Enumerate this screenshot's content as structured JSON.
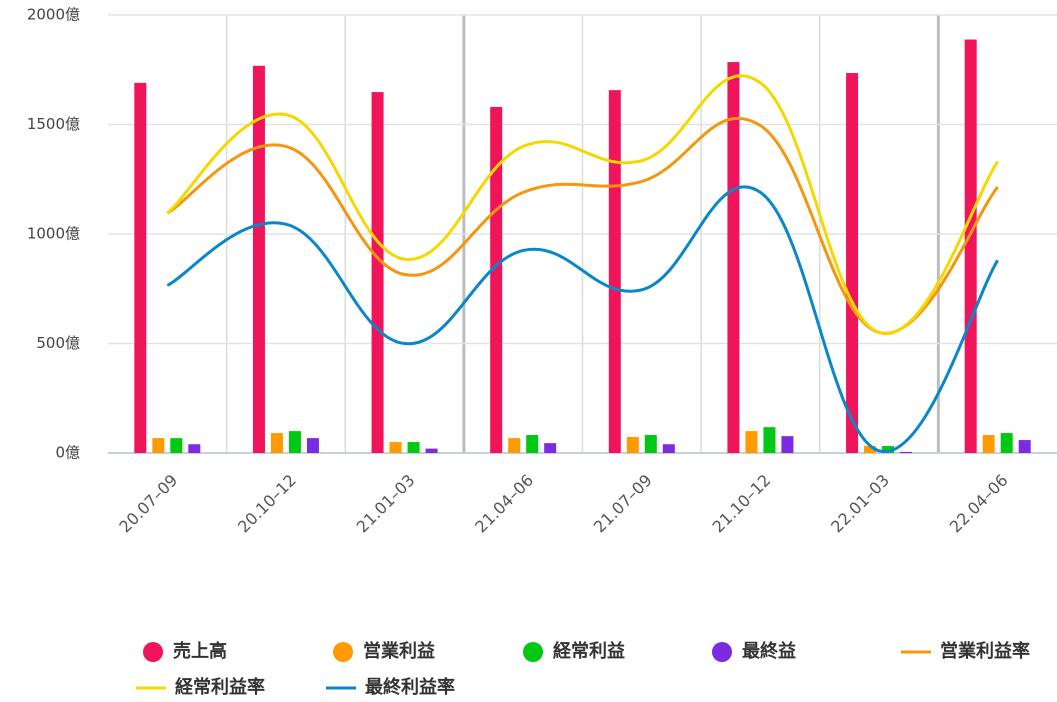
{
  "chart_data": {
    "type": "bar",
    "categories": [
      "20.07–09",
      "20.10–12",
      "21.01–03",
      "21.04–06",
      "21.07–09",
      "21.10–12",
      "22.01–03",
      "22.04–06"
    ],
    "ylim": [
      0,
      2000
    ],
    "yticks": [
      {
        "value": 0,
        "label": "0億"
      },
      {
        "value": 500,
        "label": "500億"
      },
      {
        "value": 1000,
        "label": "1000億"
      },
      {
        "value": 1500,
        "label": "1500億"
      },
      {
        "value": 2000,
        "label": "2000億"
      }
    ],
    "grid": true,
    "series": [
      {
        "name": "売上高",
        "type": "bar",
        "color": "#f0145a",
        "values": [
          1690,
          1768,
          1648,
          1580,
          1657,
          1785,
          1735,
          1888
        ]
      },
      {
        "name": "営業利益",
        "type": "bar",
        "color": "#ff9a00",
        "values": [
          68,
          91,
          50,
          68,
          73,
          100,
          32,
          82
        ]
      },
      {
        "name": "経常利益",
        "type": "bar",
        "color": "#00c814",
        "values": [
          68,
          100,
          50,
          82,
          82,
          118,
          32,
          91
        ]
      },
      {
        "name": "最終益",
        "type": "bar",
        "color": "#7b2be2",
        "values": [
          40,
          68,
          20,
          45,
          40,
          77,
          5,
          59
        ]
      },
      {
        "name": "営業利益率",
        "type": "line",
        "color": "#f5960f",
        "values": [
          1095,
          1400,
          815,
          1190,
          1240,
          1495,
          550,
          1215
        ]
      },
      {
        "name": "経常利益率",
        "type": "line",
        "color": "#f5d800",
        "values": [
          1095,
          1545,
          885,
          1400,
          1335,
          1690,
          550,
          1330
        ]
      },
      {
        "name": "最終利益率",
        "type": "line",
        "color": "#0a87c8",
        "values": [
          765,
          1045,
          500,
          925,
          745,
          1190,
          10,
          880
        ]
      }
    ]
  }
}
